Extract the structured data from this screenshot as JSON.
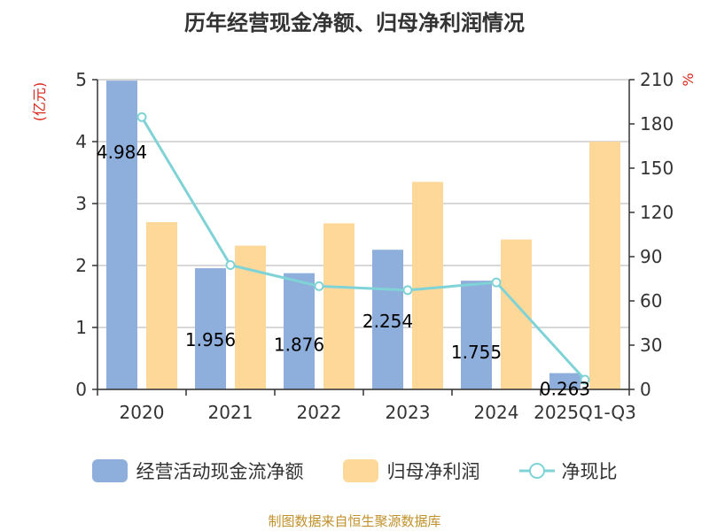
{
  "chart_data": {
    "type": "bar",
    "title": "历年经营现金净额、归母净利润情况",
    "categories": [
      "2020",
      "2021",
      "2022",
      "2023",
      "2024",
      "2025Q1-Q3"
    ],
    "series": [
      {
        "name": "经营活动现金流净额",
        "type": "bar",
        "axis": "left",
        "color": "#8eaedb",
        "values": [
          4.984,
          1.956,
          1.876,
          2.254,
          1.755,
          0.263
        ],
        "labels": [
          "4.984",
          "1.956",
          "1.876",
          "2.254",
          "1.755",
          "0.263"
        ]
      },
      {
        "name": "归母净利润",
        "type": "bar",
        "axis": "left",
        "color": "#fed898",
        "values": [
          2.7,
          2.32,
          2.68,
          3.35,
          2.42,
          4.0
        ]
      },
      {
        "name": "净现比",
        "type": "line",
        "axis": "right",
        "color": "#7fd3d6",
        "values": [
          184.6,
          84.3,
          70.0,
          67.3,
          72.5,
          6.6
        ]
      }
    ],
    "ylabel_left": "(亿元)",
    "ylabel_right": "%",
    "ylim_left": [
      0,
      5
    ],
    "ylim_right": [
      0,
      210
    ],
    "yticks_left": [
      "0",
      "1",
      "2",
      "3",
      "4",
      "5"
    ],
    "yticks_right": [
      "0",
      "30",
      "60",
      "90",
      "120",
      "150",
      "180",
      "210"
    ],
    "grid": true,
    "legend_position": "bottom"
  },
  "source_text": "制图数据来自恒生聚源数据库",
  "colors": {
    "source": "#c0902a",
    "axis_label": "#d9261c",
    "grid": "#cccccc"
  }
}
